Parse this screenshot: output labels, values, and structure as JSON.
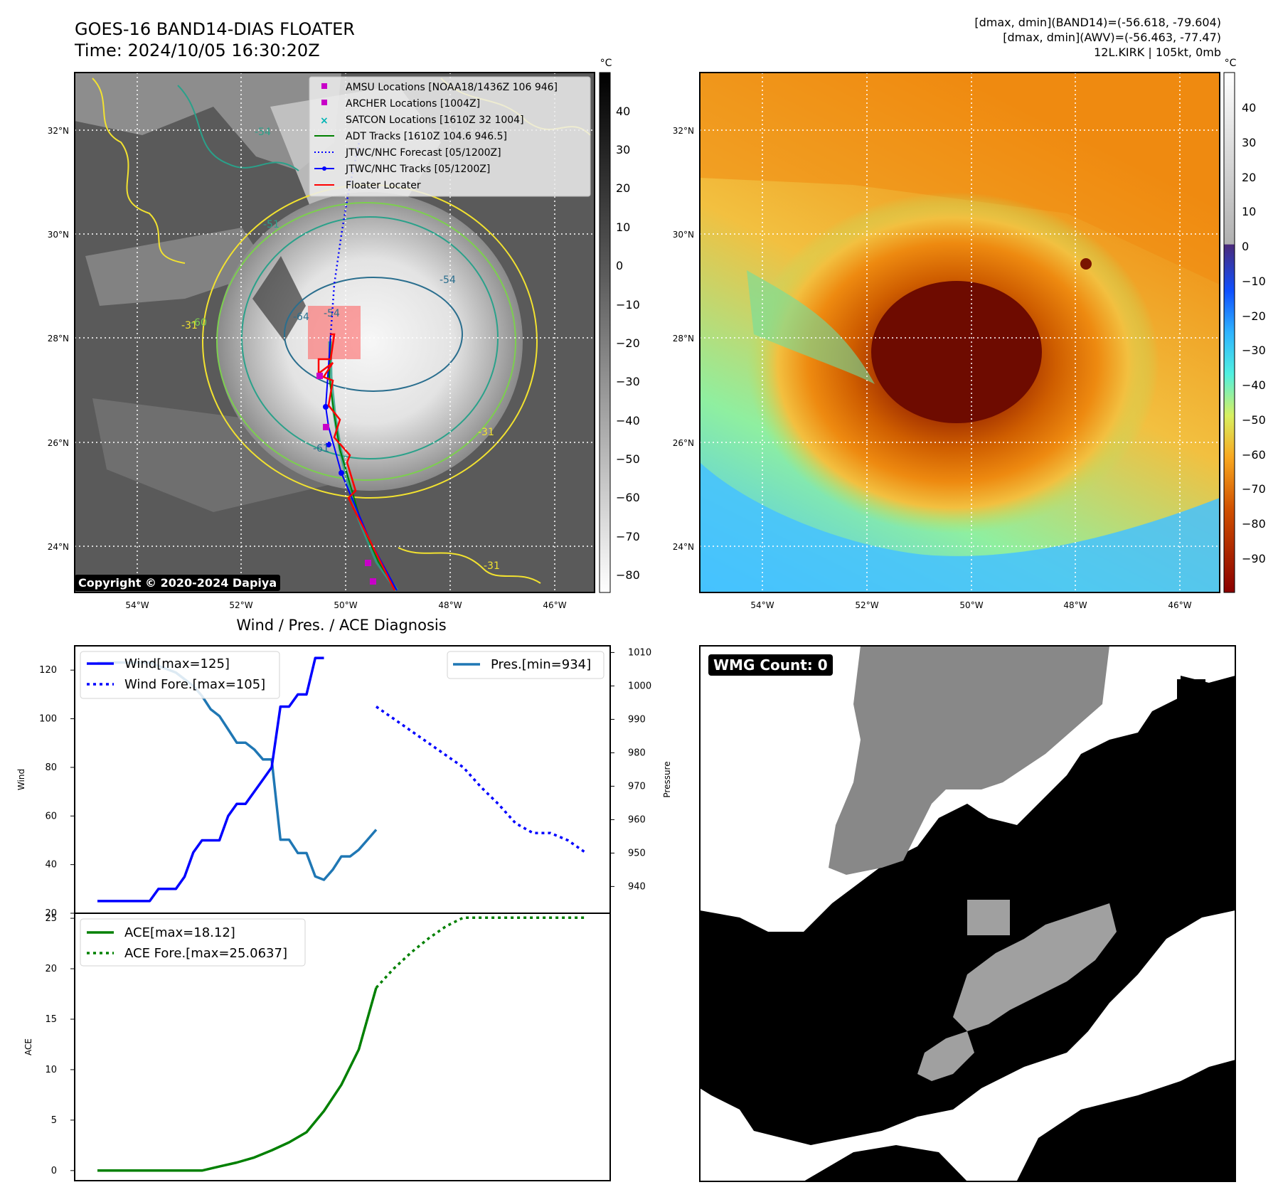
{
  "header": {
    "title_line1": "GOES-16 BAND14-DIAS FLOATER",
    "title_line2": "Time: 2024/10/05 16:30:20Z",
    "stats_line1": "[dmax, dmin](BAND14)=(-56.618, -79.604)",
    "stats_line2": "[dmax, dmin](AWV)=(-56.463, -77.47)",
    "stats_line3": "12L.KIRK | 105kt, 0mb"
  },
  "map": {
    "lat_labels": [
      "32°N",
      "30°N",
      "28°N",
      "26°N",
      "24°N"
    ],
    "lon_labels": [
      "54°W",
      "52°W",
      "50°W",
      "48°W",
      "46°W"
    ],
    "copyright": "Copyright © 2020-2024 Dapiya",
    "legend": [
      {
        "label": "AMSU Locations [NOAA18/1436Z 106 946]",
        "color": "#c800c8"
      },
      {
        "label": "ARCHER Locations [1004Z]",
        "color": "#c800c8"
      },
      {
        "label": "SATCON Locations [1610Z 32 1004]",
        "color": "#00b4b4"
      },
      {
        "label": "ADT Tracks [1610Z 104.6 946.5]",
        "color": "#008000"
      },
      {
        "label": "JTWC/NHC Forecast [05/1200Z]",
        "color": "#0000ff"
      },
      {
        "label": "JTWC/NHC Tracks [05/1200Z]",
        "color": "#0000ff"
      },
      {
        "label": "Floater Locater",
        "color": "#ff0000"
      }
    ],
    "contour_labels": [
      "-54",
      "-54",
      "-51",
      "-54",
      "-64",
      "-61",
      "-31",
      "-31",
      "-31",
      "-60"
    ]
  },
  "colorbars": {
    "unit": "°C",
    "gray_ticks": [
      "40",
      "30",
      "20",
      "10",
      "0",
      "−10",
      "−20",
      "−30",
      "−40",
      "−50",
      "−60",
      "−70",
      "−80"
    ],
    "color_ticks": [
      "40",
      "30",
      "20",
      "10",
      "0",
      "−10",
      "−20",
      "−30",
      "−40",
      "−50",
      "−60",
      "−70",
      "−80",
      "−90"
    ]
  },
  "chart_data": [
    {
      "type": "line",
      "title": "Wind / Pres. / ACE Diagnosis",
      "xlabel": "",
      "ylabel": "Wind",
      "ylabel_right": "Pressure",
      "ylim": [
        20,
        130
      ],
      "ylim_right": [
        932,
        1012
      ],
      "yticks": [
        20,
        40,
        60,
        80,
        100,
        120
      ],
      "yticks_right": [
        940,
        950,
        960,
        970,
        980,
        990,
        1000,
        1010
      ],
      "legend_left": [
        "Wind[max=125]",
        "Wind Fore.[max=105]"
      ],
      "legend_right": [
        "Pres.[min=934]"
      ],
      "series": [
        {
          "name": "Wind[max=125]",
          "color": "#0000ff",
          "style": "solid",
          "x": [
            0,
            1,
            2,
            3,
            4,
            5,
            6,
            7,
            8,
            9,
            10,
            11,
            12,
            13,
            14,
            15,
            16,
            17,
            18,
            19,
            20,
            21,
            22,
            23,
            24,
            25,
            26
          ],
          "values": [
            25,
            25,
            25,
            25,
            25,
            25,
            25,
            30,
            30,
            30,
            35,
            45,
            50,
            50,
            50,
            60,
            65,
            65,
            70,
            75,
            80,
            105,
            105,
            110,
            110,
            125,
            125
          ]
        },
        {
          "name": "Wind Fore.[max=105]",
          "color": "#0000ff",
          "style": "dotted",
          "x": [
            32,
            34,
            36,
            38,
            40,
            42,
            44,
            46,
            48,
            50,
            52,
            54,
            56
          ],
          "values": [
            105,
            100,
            95,
            90,
            85,
            80,
            72,
            65,
            57,
            53,
            53,
            50,
            45
          ]
        },
        {
          "name": "Pres.[min=934]",
          "color": "#1f77b4",
          "style": "solid",
          "axis": "right",
          "x": [
            0,
            1,
            2,
            3,
            4,
            5,
            6,
            7,
            8,
            9,
            10,
            11,
            12,
            13,
            14,
            15,
            16,
            17,
            18,
            19,
            20,
            21,
            22,
            23,
            24,
            25,
            26,
            27,
            28,
            29,
            30,
            31,
            32
          ],
          "values": [
            1007,
            1007,
            1007,
            1007,
            1007,
            1007,
            1007,
            1006,
            1005,
            1004,
            1002,
            1000,
            997,
            993,
            991,
            987,
            983,
            983,
            981,
            978,
            978,
            954,
            954,
            950,
            950,
            943,
            942,
            945,
            949,
            949,
            951,
            954,
            957
          ]
        }
      ]
    },
    {
      "type": "line",
      "ylabel": "ACE",
      "ylim": [
        -1,
        25.5
      ],
      "yticks": [
        0,
        5,
        10,
        15,
        20,
        25
      ],
      "legend": [
        "ACE[max=18.12]",
        "ACE Fore.[max=25.0637]"
      ],
      "series": [
        {
          "name": "ACE[max=18.12]",
          "color": "#008000",
          "style": "solid",
          "x": [
            0,
            3,
            6,
            8,
            10,
            12,
            14,
            16,
            18,
            20,
            22,
            24,
            26,
            28,
            30,
            32
          ],
          "values": [
            0,
            0,
            0,
            0,
            0,
            0,
            0.4,
            0.8,
            1.3,
            2.0,
            2.8,
            3.8,
            5.9,
            8.5,
            12.0,
            18.12
          ]
        },
        {
          "name": "ACE Fore.[max=25.0637]",
          "color": "#008000",
          "style": "dotted",
          "x": [
            32,
            34,
            36,
            38,
            40,
            42,
            44,
            46,
            48,
            50,
            52,
            54,
            56
          ],
          "values": [
            18.12,
            20.0,
            21.6,
            23.0,
            24.2,
            25.06,
            25.06,
            25.06,
            25.06,
            25.06,
            25.06,
            25.06,
            25.06
          ]
        }
      ]
    }
  ],
  "wmg": {
    "count_label": "WMG Count: 0"
  }
}
